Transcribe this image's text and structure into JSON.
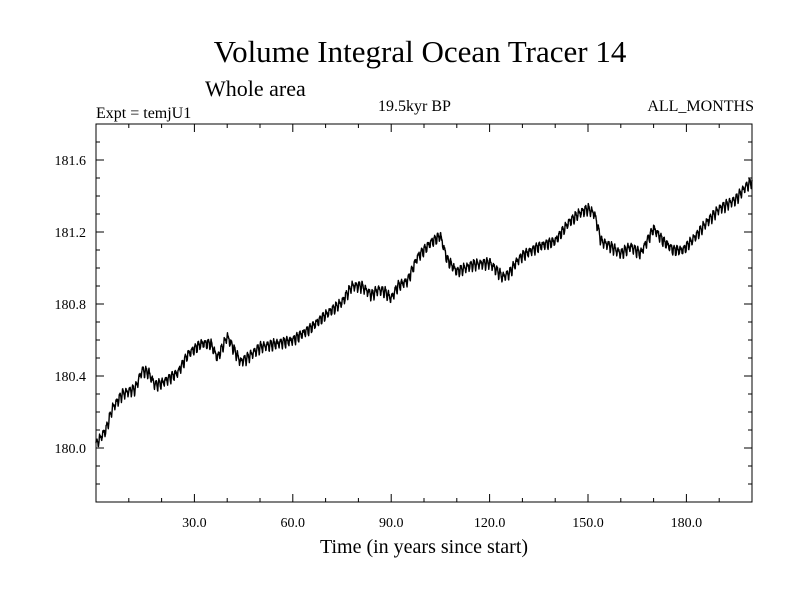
{
  "chart_data": {
    "type": "line",
    "title": "Volume Integral Ocean Tracer 14",
    "subtitle": "Whole area",
    "experiment_label": "Expt = temjU1",
    "period_label": "19.5kyr BP",
    "months_label": "ALL_MONTHS",
    "xlabel": "Time (in years since start)",
    "ylabel": "",
    "xlim": [
      0,
      200
    ],
    "ylim": [
      179.7,
      181.8
    ],
    "x_ticks": [
      30,
      60,
      90,
      120,
      150,
      180
    ],
    "x_tick_labels": [
      "30.0",
      "60.0",
      "90.0",
      "120.0",
      "150.0",
      "180.0"
    ],
    "y_ticks": [
      180.0,
      180.4,
      180.8,
      181.2,
      181.6
    ],
    "y_tick_labels": [
      "180.0",
      "180.4",
      "180.8",
      "181.2",
      "181.6"
    ],
    "series": [
      {
        "name": "Volume Integral Ocean Tracer 14",
        "color": "#000000",
        "x": [
          0,
          3,
          5,
          8,
          12,
          14,
          16,
          18,
          20,
          25,
          28,
          32,
          35,
          37,
          40,
          42,
          44,
          46,
          50,
          55,
          60,
          65,
          70,
          75,
          78,
          81,
          84,
          86,
          88,
          90,
          92,
          95,
          98,
          102,
          105,
          107,
          110,
          115,
          120,
          124,
          126,
          128,
          130,
          135,
          140,
          144,
          147,
          150,
          152,
          154,
          157,
          160,
          163,
          166,
          170,
          173,
          176,
          179,
          183,
          186,
          190,
          195,
          198,
          200
        ],
        "values": [
          180.02,
          180.1,
          180.22,
          180.3,
          180.33,
          180.43,
          180.42,
          180.35,
          180.36,
          180.42,
          180.52,
          180.58,
          180.58,
          180.5,
          180.62,
          180.55,
          180.48,
          180.5,
          180.56,
          180.58,
          180.6,
          180.66,
          180.74,
          180.81,
          180.9,
          180.9,
          180.85,
          180.88,
          180.87,
          180.83,
          180.9,
          180.93,
          181.06,
          181.14,
          181.18,
          181.05,
          180.98,
          181.02,
          181.03,
          180.95,
          180.97,
          181.03,
          181.07,
          181.12,
          181.15,
          181.25,
          181.3,
          181.33,
          181.3,
          181.15,
          181.12,
          181.08,
          181.12,
          181.08,
          181.22,
          181.15,
          181.1,
          181.1,
          181.18,
          181.25,
          181.33,
          181.38,
          181.45,
          181.48
        ]
      }
    ]
  }
}
